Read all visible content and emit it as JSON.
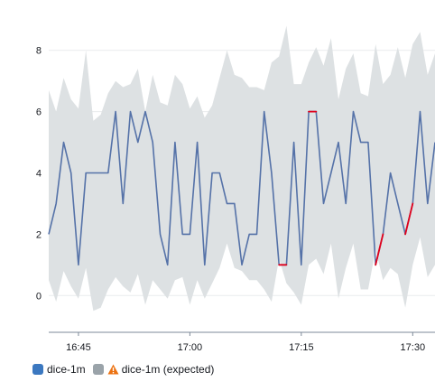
{
  "chart_data": {
    "type": "line",
    "x_tick_labels": [
      "16:45",
      "17:00",
      "17:15",
      "17:30"
    ],
    "y_tick_labels": [
      "0",
      "2",
      "4",
      "6",
      "8"
    ],
    "ylim": [
      -1.2,
      9.2
    ],
    "grid": true,
    "legend_position": "bottom-left",
    "x_start_minute": 0,
    "x_end_minute": 52,
    "x_tick_minutes": [
      4,
      19,
      34,
      49
    ],
    "series": [
      {
        "name": "dice-1m",
        "color": "#5572a8",
        "anomaly_color": "#e0001b",
        "x": [
          0,
          1,
          2,
          3,
          4,
          5,
          6,
          7,
          8,
          9,
          10,
          11,
          12,
          13,
          14,
          15,
          16,
          17,
          18,
          19,
          20,
          21,
          22,
          23,
          24,
          25,
          26,
          27,
          28,
          29,
          30,
          31,
          32,
          33,
          34,
          35,
          36,
          37,
          38,
          39,
          40,
          41,
          42,
          43,
          44,
          45,
          46,
          47,
          48,
          49,
          50,
          51,
          52
        ],
        "values": [
          2,
          3,
          5,
          4,
          1,
          4,
          4,
          4,
          4,
          6,
          3,
          6,
          5,
          6,
          5,
          2,
          1,
          5,
          2,
          2,
          5,
          1,
          4,
          4,
          3,
          3,
          1,
          2,
          2,
          6,
          4,
          1,
          1,
          5,
          1,
          6,
          6,
          3,
          4,
          5,
          3,
          6,
          5,
          5,
          1,
          2,
          4,
          3,
          2,
          3,
          6,
          3,
          5
        ],
        "anomalous_segments": [
          [
            31,
            32
          ],
          [
            35,
            36
          ],
          [
            44,
            45
          ],
          [
            48,
            49
          ]
        ]
      },
      {
        "name": "dice-1m (expected)",
        "color": "#dde1e3",
        "x": [
          0,
          1,
          2,
          3,
          4,
          5,
          6,
          7,
          8,
          9,
          10,
          11,
          12,
          13,
          14,
          15,
          16,
          17,
          18,
          19,
          20,
          21,
          22,
          23,
          24,
          25,
          26,
          27,
          28,
          29,
          30,
          31,
          32,
          33,
          34,
          35,
          36,
          37,
          38,
          39,
          40,
          41,
          42,
          43,
          44,
          45,
          46,
          47,
          48,
          49,
          50,
          51,
          52
        ],
        "upper": [
          6.7,
          6,
          7.1,
          6.4,
          6.1,
          8,
          5.7,
          5.9,
          6.6,
          7,
          6.8,
          6.9,
          7.4,
          6,
          7.2,
          6.3,
          6.2,
          7.2,
          6.9,
          6.1,
          6.5,
          5.8,
          6.2,
          7.1,
          8,
          7.2,
          7.1,
          6.8,
          6.8,
          6.7,
          7.6,
          7.8,
          8.8,
          6.9,
          6.9,
          7.6,
          8.1,
          7.5,
          8.4,
          6.4,
          7.4,
          7.9,
          6.6,
          6.5,
          8.2,
          6.9,
          7.2,
          8.1,
          7.1,
          8.2,
          8.6,
          7.2,
          7.9
        ],
        "lower": [
          0.5,
          -0.2,
          0.8,
          0.3,
          -0.1,
          0.9,
          -0.5,
          -0.4,
          0.2,
          0.6,
          0.3,
          0.1,
          0.7,
          -0.3,
          0.5,
          0.2,
          -0.1,
          0.5,
          0.6,
          -0.3,
          0.5,
          -0.1,
          0.4,
          0.9,
          1.7,
          0.9,
          0.8,
          0.5,
          0.5,
          0.2,
          -0.2,
          1.2,
          0.4,
          0.1,
          -0.3,
          1,
          1.2,
          0.7,
          1.7,
          -0.1,
          0.9,
          1.7,
          0.2,
          0.2,
          1.5,
          0.5,
          0.9,
          0.7,
          -0.4,
          1,
          1.9,
          0.6,
          1
        ]
      }
    ]
  },
  "legend": {
    "items": [
      {
        "label": "dice-1m",
        "color": "#3b78c0"
      },
      {
        "label": "dice-1m (expected)",
        "color": "#9aa3a9",
        "warning_color": "#ec7211"
      }
    ]
  }
}
